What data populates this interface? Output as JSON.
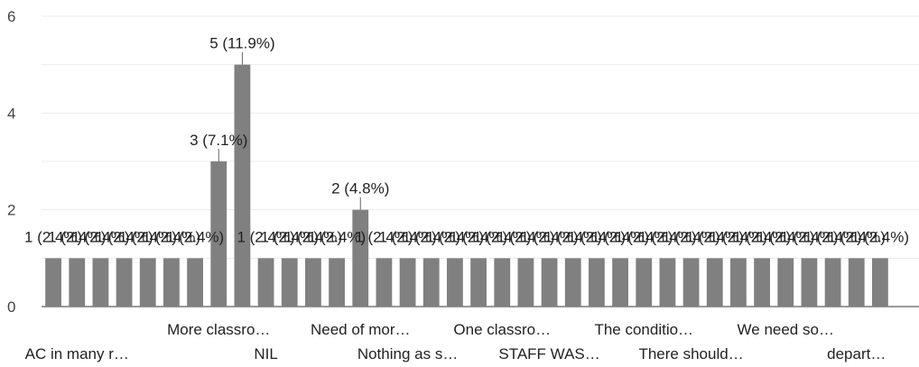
{
  "chart_data": {
    "type": "bar",
    "ylim": [
      0,
      6
    ],
    "yticks": [
      0,
      2,
      4,
      6
    ],
    "grid": true,
    "bar_color": "#808080",
    "values": [
      1,
      1,
      1,
      1,
      1,
      1,
      1,
      3,
      5,
      1,
      1,
      1,
      1,
      2,
      1,
      1,
      1,
      1,
      1,
      1,
      1,
      1,
      1,
      1,
      1,
      1,
      1,
      1,
      1,
      1,
      1,
      1,
      1,
      1,
      1,
      1
    ],
    "data_labels": [
      "1 (2.4%)",
      "1 (2.4%)",
      "1 (2.4%)",
      "1 (2.4%)",
      "1 (2.4%)",
      "1 (2.4%)",
      "1 (2.4%)",
      "3 (7.1%)",
      "5 (11.9%)",
      "1 (2.4%)",
      "1 (2.4%)",
      "1 (2.4%)",
      "1 (2.4%)",
      "2 (4.8%)",
      "1 (2.4%)",
      "1 (2.4%)",
      "1 (2.4%)",
      "1 (2.4%)",
      "1 (2.4%)",
      "1 (2.4%)",
      "1 (2.4%)",
      "1 (2.4%)",
      "1 (2.4%)",
      "1 (2.4%)",
      "1 (2.4%)",
      "1 (2.4%)",
      "1 (2.4%)",
      "1 (2.4%)",
      "1 (2.4%)",
      "1 (2.4%)",
      "1 (2.4%)",
      "1 (2.4%)",
      "1 (2.4%)",
      "1 (2.4%)",
      "1 (2.4%)",
      "1 (2.4%)"
    ],
    "x_tick_labels": [
      {
        "index": 1,
        "text": "AC in many r…",
        "row": 2
      },
      {
        "index": 7,
        "text": "More classro…",
        "row": 1
      },
      {
        "index": 9,
        "text": "NIL",
        "row": 2
      },
      {
        "index": 13,
        "text": "Need of mor…",
        "row": 1
      },
      {
        "index": 15,
        "text": "Nothing as s…",
        "row": 2
      },
      {
        "index": 19,
        "text": "One classro…",
        "row": 1
      },
      {
        "index": 21,
        "text": "STAFF WAS…",
        "row": 2
      },
      {
        "index": 25,
        "text": "The conditio…",
        "row": 1
      },
      {
        "index": 27,
        "text": "There should…",
        "row": 2
      },
      {
        "index": 31,
        "text": "We need so…",
        "row": 1
      },
      {
        "index": 34,
        "text": "depart…",
        "row": 2
      }
    ]
  }
}
